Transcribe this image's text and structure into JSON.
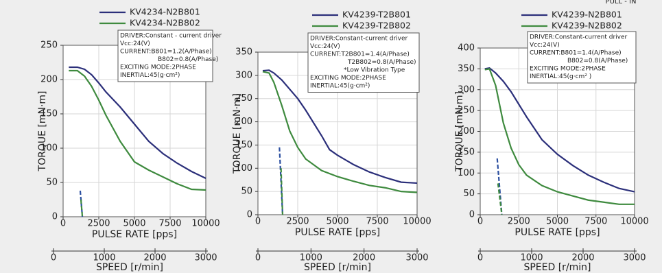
{
  "chart_data": [
    {
      "type": "line",
      "ylabel": "TORQUE  [mN·m]",
      "xlabel": "PULSE RATE [pps]",
      "x2label": "SPEED [r/min]",
      "xlim": [
        0,
        10000
      ],
      "xticks": [
        0,
        2500,
        5000,
        7500,
        10000
      ],
      "ylim": [
        0,
        250
      ],
      "yticks": [
        0,
        50,
        100,
        150,
        200,
        250
      ],
      "x2lim": [
        0,
        3000
      ],
      "x2ticks": [
        0,
        1000,
        2000,
        3000
      ],
      "grid": true,
      "info": [
        "DRIVER:Constant - current driver",
        "Vcc:24(V)",
        "CURRENT:B801=1.2(A/Phase)",
        "B802=0.8(A/Phase)",
        "EXCITING MODE:2PHASE",
        "INERTIAL:45(g·cm²)"
      ],
      "series": [
        {
          "name": "KV4234-N2B801",
          "color": "#2b2f7a",
          "x": [
            400,
            1000,
            1500,
            2000,
            2500,
            3000,
            4000,
            5000,
            6000,
            7000,
            8000,
            9000,
            10000
          ],
          "values": [
            218,
            218,
            215,
            207,
            195,
            182,
            160,
            135,
            110,
            92,
            78,
            66,
            56
          ]
        },
        {
          "name": "KV4234-N2B802",
          "color": "#3e8a3e",
          "x": [
            400,
            1000,
            1500,
            2000,
            2500,
            3000,
            4000,
            5000,
            6000,
            7000,
            8000,
            9000,
            10000
          ],
          "values": [
            213,
            213,
            205,
            190,
            170,
            148,
            110,
            80,
            68,
            58,
            48,
            40,
            39
          ]
        },
        {
          "color": "#2b4fa0",
          "dashed": true,
          "x": [
            1200,
            1350
          ],
          "values": [
            38,
            0
          ]
        },
        {
          "color": "#3e8a3e",
          "dashed": true,
          "x": [
            1250,
            1350
          ],
          "values": [
            25,
            0
          ]
        }
      ]
    },
    {
      "type": "line",
      "ylabel": "TORQUE  [mN·m]",
      "xlabel": "PULSE RATE [pps]",
      "x2label": "SPEED [r/min]",
      "xlim": [
        0,
        10000
      ],
      "xticks": [
        0,
        2500,
        5000,
        7500,
        10000
      ],
      "ylim": [
        0,
        350
      ],
      "yticks": [
        0,
        50,
        100,
        150,
        200,
        250,
        300,
        350
      ],
      "x2lim": [
        0,
        3000
      ],
      "x2ticks": [
        0,
        1000,
        2000,
        3000
      ],
      "grid": true,
      "info": [
        "DRIVER:Constant-current driver",
        "Vcc:24(V)",
        "CURRENT:T2B801=1.4(A/Phase)",
        "T2B802=0.8(A/Phase)",
        "*Low Vibration Type",
        "EXCITING MODE:2PHASE",
        "INERTIAL:45(g·cm²)"
      ],
      "series": [
        {
          "name": "KV4239-T2B801",
          "color": "#2b2f7a",
          "x": [
            300,
            700,
            1000,
            1500,
            2000,
            2500,
            3000,
            4000,
            4500,
            5000,
            6000,
            7000,
            8000,
            9000,
            10000
          ],
          "values": [
            310,
            311,
            305,
            290,
            270,
            250,
            225,
            170,
            140,
            128,
            108,
            92,
            80,
            70,
            68
          ]
        },
        {
          "name": "KV4239-T2B802",
          "color": "#3e8a3e",
          "x": [
            300,
            700,
            1000,
            1500,
            2000,
            2500,
            3000,
            4000,
            5000,
            6000,
            7000,
            8000,
            9000,
            10000
          ],
          "values": [
            308,
            305,
            285,
            235,
            180,
            145,
            120,
            95,
            82,
            72,
            63,
            58,
            50,
            48
          ]
        },
        {
          "color": "#2b4fa0",
          "dashed": true,
          "x": [
            1350,
            1550
          ],
          "values": [
            145,
            0
          ]
        },
        {
          "color": "#3e8a3e",
          "dashed": true,
          "x": [
            1450,
            1550
          ],
          "values": [
            100,
            0
          ]
        }
      ]
    },
    {
      "type": "line",
      "ylabel": "TORQUE  [mN·m]",
      "xlabel": "PULSE RATE [pps]",
      "x2label": "SPEED [r/min]",
      "note": "PULL - IN",
      "xlim": [
        0,
        10000
      ],
      "xticks": [
        0,
        2500,
        5000,
        7500,
        10000
      ],
      "ylim": [
        0,
        400
      ],
      "yticks": [
        0,
        50,
        100,
        150,
        200,
        250,
        300,
        350,
        400
      ],
      "x2lim": [
        0,
        3000
      ],
      "x2ticks": [
        0,
        1000,
        2000,
        3000
      ],
      "grid": true,
      "info": [
        "DRIVER:Constant-current driver",
        "Vcc:24(V)",
        "CURRENT:B801=1.4(A/Phase)",
        "B802=0.8(A/Phase)",
        "EXCITING MODE:2PHASE",
        "INERTIAL:45(g·cm²  )"
      ],
      "series": [
        {
          "name": "KV4239-N2B801",
          "color": "#2b2f7a",
          "x": [
            300,
            600,
            1000,
            1500,
            2000,
            2500,
            3000,
            4000,
            5000,
            6000,
            7000,
            8000,
            9000,
            10000
          ],
          "values": [
            350,
            352,
            340,
            320,
            295,
            265,
            235,
            180,
            145,
            118,
            95,
            78,
            63,
            55
          ]
        },
        {
          "name": "KV4239-N2B802",
          "color": "#3e8a3e",
          "x": [
            300,
            600,
            1000,
            1500,
            2000,
            2500,
            3000,
            4000,
            5000,
            6000,
            7000,
            8000,
            9000,
            10000
          ],
          "values": [
            348,
            350,
            310,
            220,
            160,
            120,
            95,
            70,
            55,
            45,
            35,
            30,
            25,
            25
          ]
        },
        {
          "color": "#2b4fa0",
          "dashed": true,
          "x": [
            1100,
            1400
          ],
          "values": [
            135,
            0
          ]
        },
        {
          "color": "#3e8a3e",
          "dashed": true,
          "x": [
            1150,
            1400
          ],
          "values": [
            75,
            0
          ]
        }
      ]
    }
  ]
}
